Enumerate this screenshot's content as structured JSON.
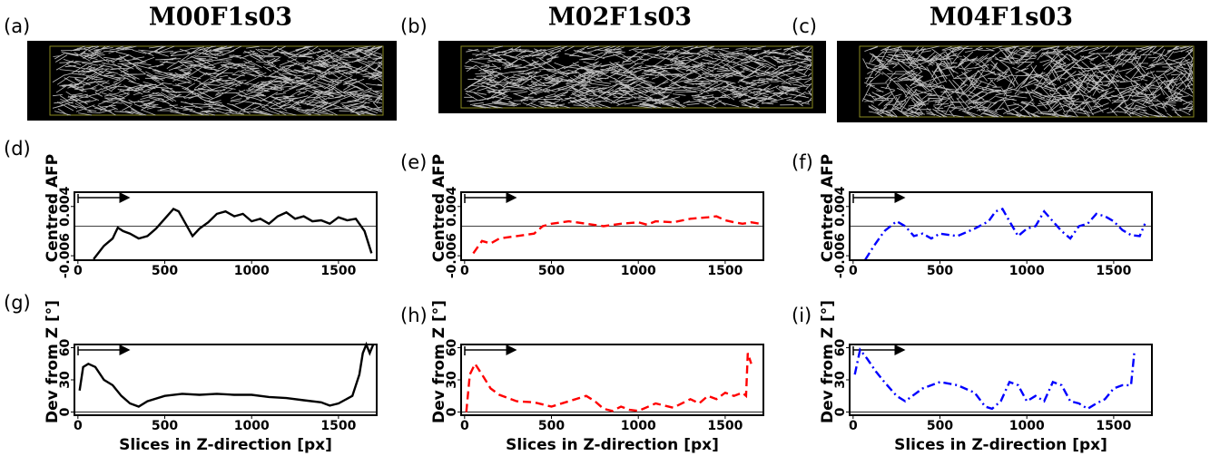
{
  "images": [
    {
      "panel_label": "(a)",
      "title": "M00F1s03"
    },
    {
      "panel_label": "(b)",
      "title": "M02F1s03"
    },
    {
      "panel_label": "(c)",
      "title": "M04F1s03"
    }
  ],
  "chart_data": [
    {
      "type": "line",
      "panel_label": "(d)",
      "ylabel": "Centred AFP",
      "color": "#000000",
      "line_style": "solid",
      "xlim": [
        -20,
        1720
      ],
      "xticks": [
        0,
        500,
        1000,
        1500
      ],
      "ylim": [
        -0.0069,
        0.0069
      ],
      "yticks": [
        -0.006,
        0.004
      ],
      "hline": 0,
      "x": [
        90,
        150,
        200,
        230,
        260,
        300,
        350,
        400,
        450,
        500,
        550,
        580,
        620,
        660,
        700,
        750,
        800,
        850,
        900,
        950,
        1000,
        1050,
        1100,
        1150,
        1200,
        1250,
        1300,
        1350,
        1400,
        1450,
        1500,
        1550,
        1600,
        1650,
        1690
      ],
      "values": [
        -0.0067,
        -0.004,
        -0.0025,
        -0.0003,
        -0.001,
        -0.0015,
        -0.0025,
        -0.002,
        -0.0005,
        0.0015,
        0.0035,
        0.003,
        0.0005,
        -0.002,
        -0.0005,
        0.0008,
        0.0025,
        0.003,
        0.002,
        0.0025,
        0.001,
        0.0015,
        0.0005,
        0.002,
        0.0028,
        0.0015,
        0.002,
        0.001,
        0.0012,
        0.0005,
        0.0018,
        0.0012,
        0.0015,
        -0.001,
        -0.0055
      ]
    },
    {
      "type": "line",
      "panel_label": "(e)",
      "ylabel": "Centred AFP",
      "color": "#ff0000",
      "line_style": "dashed",
      "xlim": [
        -20,
        1720
      ],
      "xticks": [
        0,
        500,
        1000,
        1500
      ],
      "ylim": [
        -0.0069,
        0.0069
      ],
      "yticks": [
        -0.006,
        0.004
      ],
      "hline": 0,
      "x": [
        50,
        100,
        150,
        200,
        300,
        400,
        450,
        500,
        600,
        700,
        800,
        900,
        1000,
        1050,
        1100,
        1200,
        1300,
        1400,
        1450,
        1500,
        1550,
        1600,
        1650,
        1700
      ],
      "values": [
        -0.0055,
        -0.003,
        -0.0035,
        -0.0025,
        -0.002,
        -0.0015,
        0,
        0.0005,
        0.001,
        0.0005,
        0,
        0.0005,
        0.0008,
        0.0003,
        0.001,
        0.0008,
        0.0015,
        0.0018,
        0.002,
        0.0012,
        0.0008,
        0.0005,
        0.0008,
        0.0005
      ]
    },
    {
      "type": "line",
      "panel_label": "(f)",
      "ylabel": "Centred AFP",
      "color": "#0000ff",
      "line_style": "dashdot",
      "xlim": [
        -20,
        1720
      ],
      "xticks": [
        0,
        500,
        1000,
        1500
      ],
      "ylim": [
        -0.0069,
        0.0069
      ],
      "yticks": [
        -0.006,
        0.004
      ],
      "hline": 0,
      "x": [
        70,
        120,
        180,
        250,
        300,
        350,
        400,
        450,
        500,
        600,
        700,
        780,
        820,
        860,
        900,
        950,
        1000,
        1050,
        1100,
        1150,
        1200,
        1250,
        1300,
        1350,
        1400,
        1450,
        1500,
        1550,
        1600,
        1650,
        1680
      ],
      "values": [
        -0.0068,
        -0.004,
        -0.001,
        0.001,
        0,
        -0.002,
        -0.0015,
        -0.0025,
        -0.0015,
        -0.002,
        -0.0005,
        0.001,
        0.003,
        0.0035,
        0.001,
        -0.002,
        -0.0005,
        0,
        0.003,
        0.001,
        -0.001,
        -0.0025,
        0,
        0.0005,
        0.0025,
        0.002,
        0.001,
        -0.0008,
        -0.0018,
        -0.002,
        0.0005
      ]
    },
    {
      "type": "line",
      "panel_label": "(g)",
      "ylabel": "Dev from Z [°]",
      "xlabel": "Slices in Z-direction [px]",
      "color": "#000000",
      "line_style": "solid",
      "xlim": [
        -20,
        1720
      ],
      "xticks": [
        0,
        500,
        1000,
        1500
      ],
      "ylim": [
        -3,
        63
      ],
      "yticks": [
        0,
        30,
        60
      ],
      "hline": 0,
      "x": [
        10,
        30,
        60,
        100,
        150,
        200,
        250,
        300,
        350,
        400,
        500,
        600,
        700,
        800,
        900,
        1000,
        1100,
        1200,
        1300,
        1400,
        1450,
        1500,
        1580,
        1620,
        1640,
        1660,
        1680,
        1700
      ],
      "values": [
        20,
        42,
        45,
        42,
        30,
        25,
        15,
        8,
        5,
        10,
        15,
        17,
        16,
        17,
        16,
        16,
        14,
        13,
        11,
        9,
        6,
        8,
        15,
        35,
        55,
        63,
        55,
        63
      ]
    },
    {
      "type": "line",
      "panel_label": "(h)",
      "ylabel": "Dev from Z [°]",
      "xlabel": "Slices in Z-direction [px]",
      "color": "#ff0000",
      "line_style": "dashed",
      "xlim": [
        -20,
        1720
      ],
      "xticks": [
        0,
        500,
        1000,
        1500
      ],
      "ylim": [
        -3,
        63
      ],
      "yticks": [
        0,
        30,
        60
      ],
      "hline": 0,
      "x": [
        10,
        30,
        60,
        100,
        150,
        200,
        300,
        400,
        500,
        600,
        700,
        750,
        800,
        850,
        900,
        950,
        1000,
        1100,
        1200,
        1300,
        1350,
        1400,
        1450,
        1500,
        1550,
        1600,
        1620,
        1630,
        1650
      ],
      "values": [
        0,
        35,
        45,
        35,
        22,
        16,
        10,
        9,
        5,
        10,
        15,
        10,
        3,
        1,
        5,
        2,
        1,
        8,
        4,
        12,
        8,
        15,
        12,
        18,
        15,
        18,
        15,
        55,
        45
      ]
    },
    {
      "type": "line",
      "panel_label": "(i)",
      "ylabel": "Dev from Z [°]",
      "xlabel": "Slices in Z-direction [px]",
      "color": "#0000ff",
      "line_style": "dashdot",
      "xlim": [
        -20,
        1720
      ],
      "xticks": [
        0,
        500,
        1000,
        1500
      ],
      "ylim": [
        -3,
        63
      ],
      "yticks": [
        0,
        30,
        60
      ],
      "hline": 0,
      "x": [
        10,
        40,
        80,
        130,
        180,
        250,
        300,
        400,
        500,
        600,
        700,
        760,
        800,
        850,
        900,
        950,
        1000,
        1050,
        1100,
        1150,
        1200,
        1250,
        1300,
        1350,
        1400,
        1450,
        1500,
        1550,
        1600,
        1620
      ],
      "values": [
        35,
        58,
        50,
        38,
        28,
        15,
        10,
        22,
        28,
        25,
        18,
        5,
        3,
        10,
        28,
        25,
        10,
        15,
        10,
        28,
        25,
        10,
        8,
        3,
        8,
        12,
        22,
        25,
        25,
        58
      ]
    }
  ]
}
